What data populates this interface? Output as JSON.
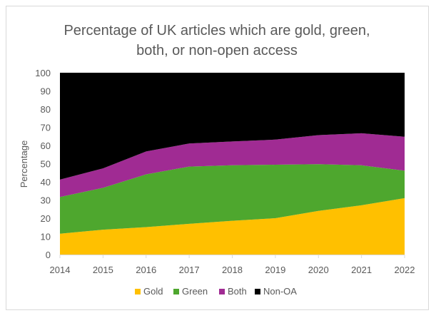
{
  "chart_data": {
    "type": "area",
    "stacked": true,
    "title": "Percentage of UK articles which are gold, green, both, or non-open access",
    "title_lines": [
      "Percentage of UK articles which are gold, green,",
      "both, or non-open access"
    ],
    "xlabel": "",
    "ylabel": "Percentage",
    "ylim": [
      0,
      100
    ],
    "yticks": [
      0,
      10,
      20,
      30,
      40,
      50,
      60,
      70,
      80,
      90,
      100
    ],
    "categories": [
      "2014",
      "2015",
      "2016",
      "2017",
      "2018",
      "2019",
      "2020",
      "2021",
      "2022"
    ],
    "grid": false,
    "legend_position": "bottom",
    "series": [
      {
        "name": "Gold",
        "color": "#FFC000",
        "values": [
          11.5,
          13.7,
          15.1,
          16.9,
          18.6,
          20.0,
          24.0,
          27.1,
          31.0
        ]
      },
      {
        "name": "Green",
        "color": "#4EA72E",
        "values": [
          20.2,
          23.0,
          29.0,
          31.5,
          30.5,
          29.4,
          25.7,
          22.0,
          15.1
        ]
      },
      {
        "name": "Both",
        "color": "#A02B93",
        "values": [
          9.5,
          10.7,
          12.6,
          12.7,
          13.1,
          13.8,
          16.0,
          17.6,
          18.7
        ]
      },
      {
        "name": "Non-OA",
        "color": "#000000",
        "values": [
          58.8,
          52.6,
          43.3,
          38.9,
          37.8,
          36.8,
          34.3,
          33.3,
          35.2
        ]
      }
    ]
  }
}
